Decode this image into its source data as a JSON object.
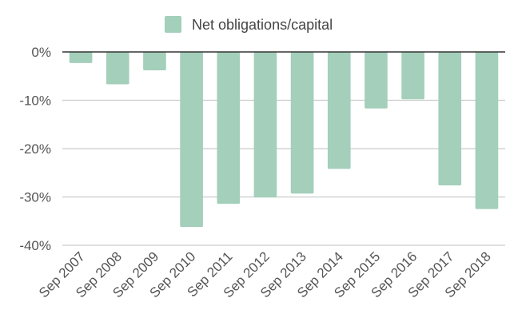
{
  "chart_data": {
    "type": "bar",
    "categories": [
      "Sep 2007",
      "Sep 2008",
      "Sep 2009",
      "Sep 2010",
      "Sep 2011",
      "Sep 2012",
      "Sep 2013",
      "Sep 2014",
      "Sep 2015",
      "Sep 2016",
      "Sep 2017",
      "Sep 2018"
    ],
    "series": [
      {
        "name": "Net obligations/capital",
        "values": [
          -2.3,
          -6.7,
          -3.8,
          -36.2,
          -31.4,
          -30.1,
          -29.3,
          -24.2,
          -11.7,
          -9.8,
          -27.6,
          -32.5
        ],
        "color": "#a3cfbb"
      }
    ],
    "ylim": [
      -40,
      0
    ],
    "yticks": [
      0,
      -10,
      -20,
      -30,
      -40
    ],
    "ytick_labels": [
      "0%",
      "-10%",
      "-20%",
      "-30%",
      "-40%"
    ],
    "grid": true,
    "legend_position": "top",
    "zero_line_color": "#333333",
    "grid_color": "#cccccc"
  }
}
